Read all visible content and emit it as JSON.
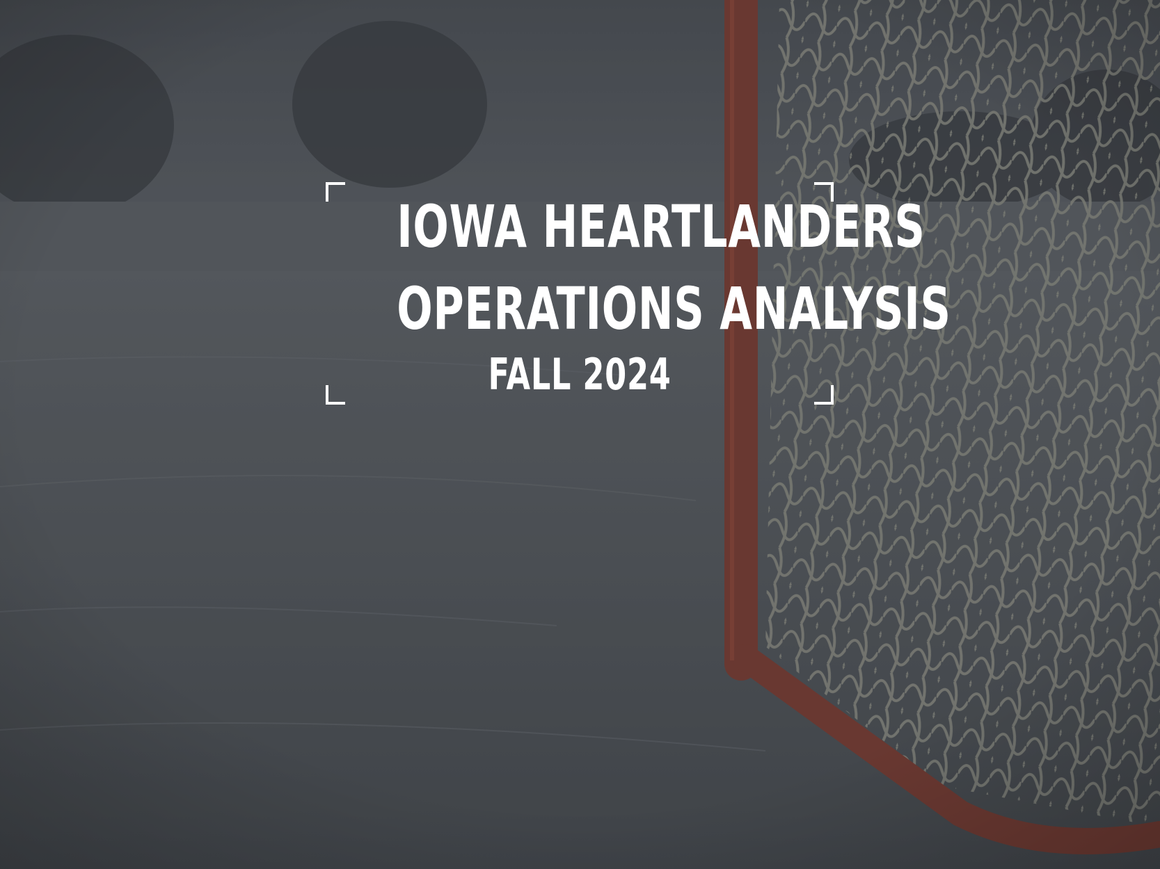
{
  "slide": {
    "title_line_1": "IOWA HEARTLANDERS",
    "title_line_2": "OPERATIONS ANALYSIS",
    "subtitle": "FALL 2024"
  },
  "background": {
    "scene": "outdoor ice rink with hockey goal",
    "overlay_color": "#3a3d42",
    "goal_frame_color": "#8a3a2c",
    "net_color": "#8e8f85",
    "text_color": "#ffffff"
  }
}
